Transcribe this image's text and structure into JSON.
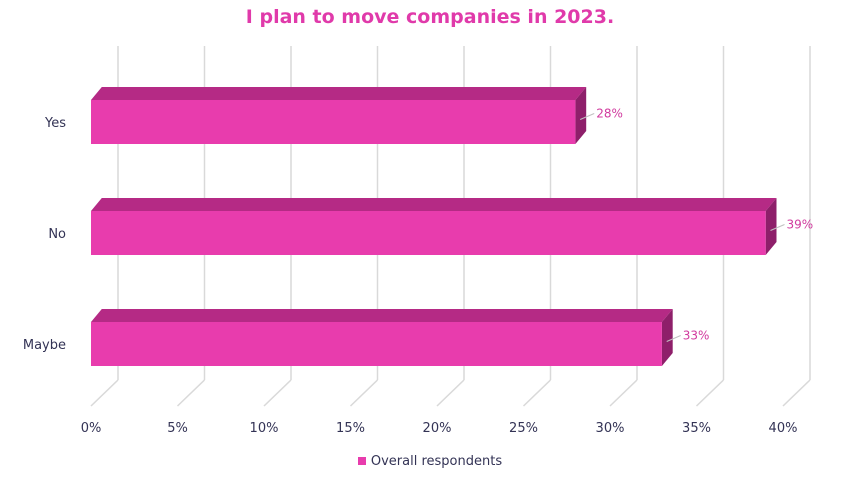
{
  "chart_data": {
    "type": "bar",
    "orientation": "horizontal",
    "three_d": true,
    "title": "I plan to move companies in 2023.",
    "categories": [
      "Yes",
      "No",
      "Maybe"
    ],
    "series": [
      {
        "name": "Overall respondents",
        "values": [
          28,
          39,
          33
        ],
        "color": "#e83cad"
      }
    ],
    "data_labels": [
      "28%",
      "39%",
      "33%"
    ],
    "xlim": [
      0,
      40
    ],
    "x_ticks": [
      0,
      5,
      10,
      15,
      20,
      25,
      30,
      35,
      40
    ],
    "x_tick_labels": [
      "0%",
      "5%",
      "10%",
      "15%",
      "20%",
      "25%",
      "30%",
      "35%",
      "40%"
    ],
    "grid": true,
    "legend_position": "bottom",
    "colors": {
      "title": "#e03aaa",
      "bar_front": "#e83cad",
      "bar_top": "#b52a85",
      "bar_side": "#8e1f6a",
      "data_label": "#d13a9e",
      "axis_text": "#333355",
      "grid": "#d9d9d9"
    }
  }
}
